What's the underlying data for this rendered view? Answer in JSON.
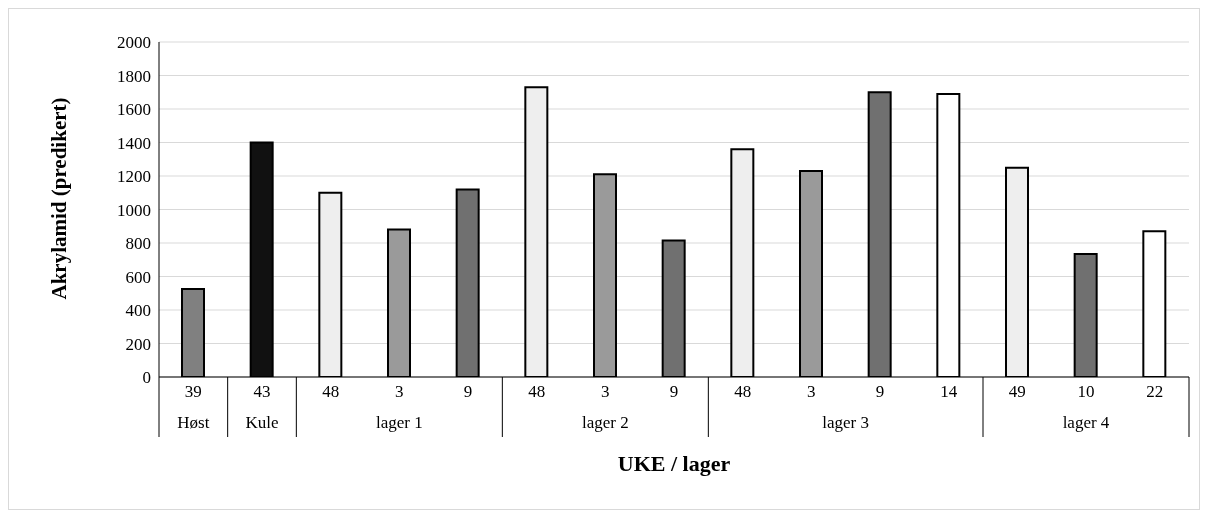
{
  "chart_data": {
    "type": "bar",
    "xlabel": "UKE / lager",
    "ylabel": "Akrylamid (predikert)",
    "categories": [
      "39",
      "43",
      "48",
      "3",
      "9",
      "48",
      "3",
      "9",
      "48",
      "3",
      "9",
      "14",
      "49",
      "10",
      "22"
    ],
    "values": [
      525,
      1400,
      1100,
      880,
      1120,
      1730,
      1210,
      815,
      1360,
      1230,
      1700,
      1690,
      1250,
      735,
      870
    ],
    "colors": [
      "#808080",
      "#111111",
      "#eeeeee",
      "#9a9a9a",
      "#707070",
      "#eeeeee",
      "#9a9a9a",
      "#707070",
      "#eeeeee",
      "#9a9a9a",
      "#707070",
      "#ffffff",
      "#eeeeee",
      "#707070",
      "#ffffff"
    ],
    "ylim": [
      0,
      2000
    ],
    "yticks": [
      0,
      200,
      400,
      600,
      800,
      1000,
      1200,
      1400,
      1600,
      1800,
      2000
    ],
    "grid": "y",
    "annotations": [
      "Høst",
      "Kule",
      "lager 1",
      "lager 2",
      "lager 3",
      "lager 4"
    ]
  }
}
